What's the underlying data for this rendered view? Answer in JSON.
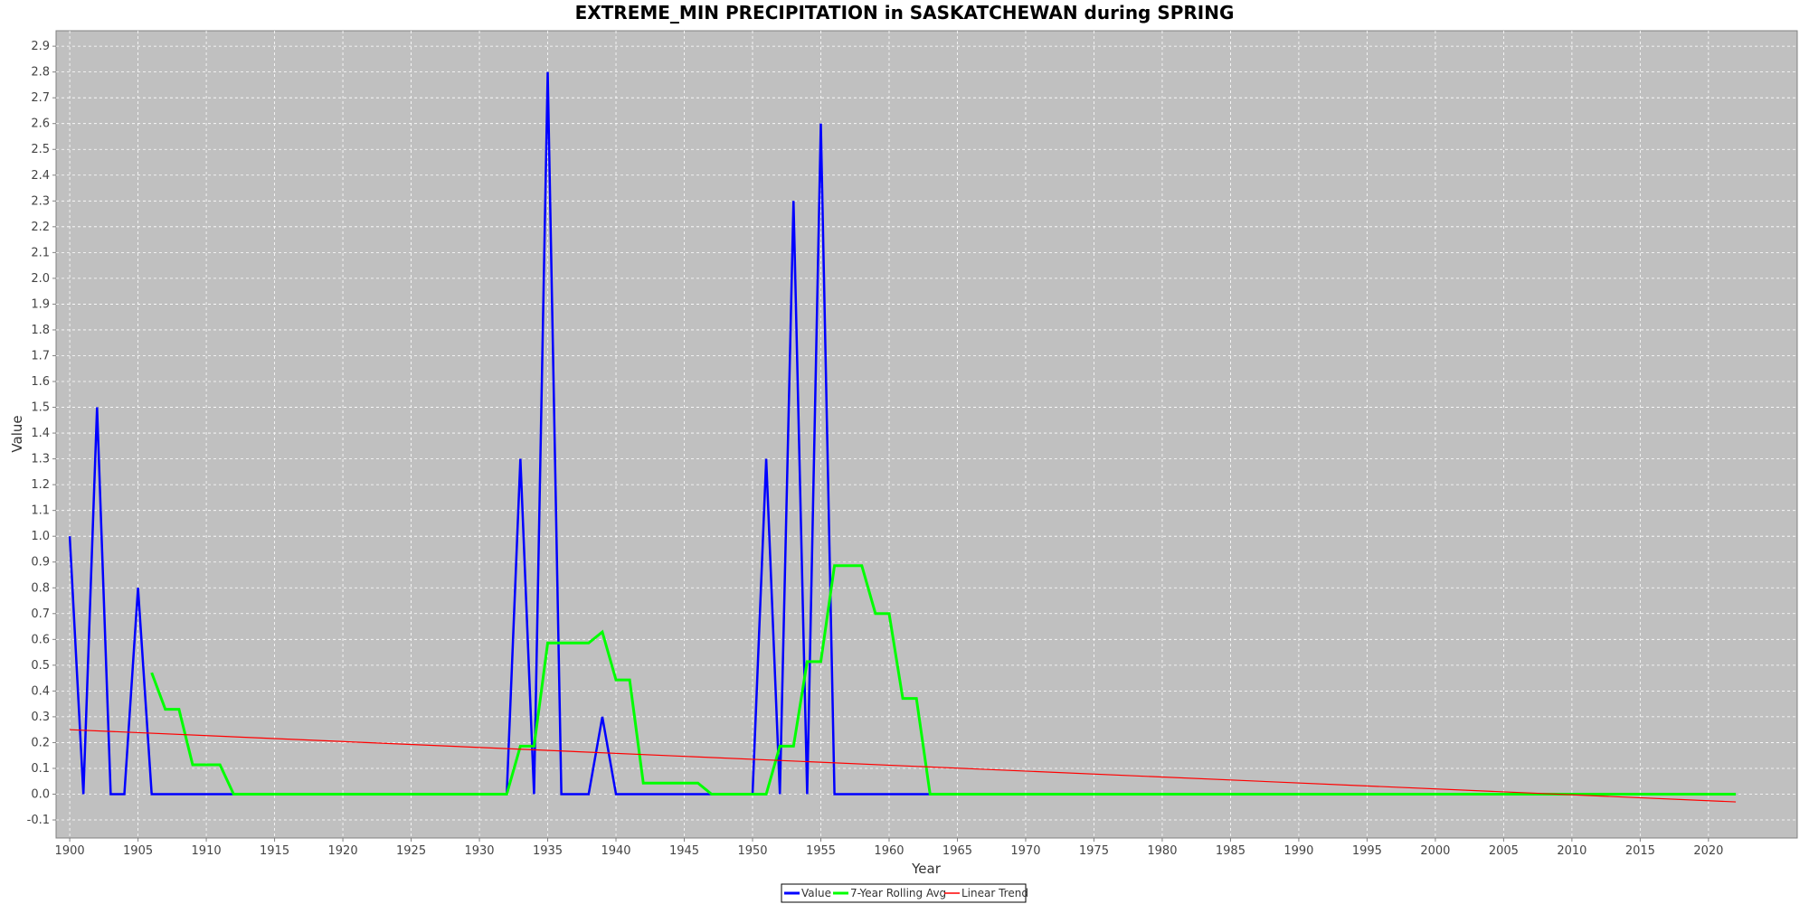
{
  "chart_data": {
    "type": "line",
    "title": "EXTREME_MIN PRECIPITATION in SASKATCHEWAN during SPRING",
    "xlabel": "Year",
    "ylabel": "Value",
    "xlim": [
      1899,
      2026.5
    ],
    "ylim": [
      -0.17,
      2.96
    ],
    "xticks": [
      1900,
      1905,
      1910,
      1915,
      1920,
      1925,
      1930,
      1935,
      1940,
      1945,
      1950,
      1955,
      1960,
      1965,
      1970,
      1975,
      1980,
      1985,
      1990,
      1995,
      2000,
      2005,
      2010,
      2015,
      2020
    ],
    "yticks": [
      -0.1,
      0.0,
      0.1,
      0.2,
      0.3,
      0.4,
      0.5,
      0.6,
      0.7,
      0.8,
      0.9,
      1.0,
      1.1,
      1.2,
      1.3,
      1.4,
      1.5,
      1.6,
      1.7,
      1.8,
      1.9,
      2.0,
      2.1,
      2.2,
      2.3,
      2.4,
      2.5,
      2.6,
      2.7,
      2.8,
      2.9
    ],
    "grid": true,
    "legend_position": "bottom-center",
    "background": "#c0c0c0",
    "series": [
      {
        "name": "Value",
        "color": "#0000ff",
        "x_start": 1900,
        "values": [
          1.0,
          0.0,
          1.5,
          0.0,
          0.0,
          0.8,
          0.0,
          0.0,
          0.0,
          0.0,
          0.0,
          0.0,
          0.0,
          0.0,
          0.0,
          0.0,
          0.0,
          0.0,
          0.0,
          0.0,
          0.0,
          0.0,
          0.0,
          0.0,
          0.0,
          0.0,
          0.0,
          0.0,
          0.0,
          0.0,
          0.0,
          0.0,
          0.0,
          1.3,
          0.0,
          2.8,
          0.0,
          0.0,
          0.0,
          0.3,
          0.0,
          0.0,
          0.0,
          0.0,
          0.0,
          0.0,
          0.0,
          0.0,
          0.0,
          0.0,
          0.0,
          1.3,
          0.0,
          2.3,
          0.0,
          2.6,
          0.0,
          0.0,
          0.0,
          0.0,
          0.0,
          0.0,
          0.0,
          0.0,
          0.0,
          0.0,
          0.0,
          0.0,
          0.0,
          0.0,
          0.0,
          0.0,
          0.0,
          0.0,
          0.0,
          0.0,
          0.0,
          0.0,
          0.0,
          0.0,
          0.0,
          0.0,
          0.0,
          0.0,
          0.0,
          0.0,
          0.0,
          0.0,
          0.0,
          0.0,
          0.0,
          0.0,
          0.0,
          0.0,
          0.0,
          0.0,
          0.0,
          0.0,
          0.0,
          0.0,
          0.0,
          0.0,
          0.0,
          0.0,
          0.0,
          0.0,
          0.0,
          0.0,
          0.0,
          0.0,
          0.0,
          0.0,
          0.0,
          0.0,
          0.0,
          0.0,
          0.0,
          0.0,
          0.0,
          0.0,
          0.0,
          0.0,
          0.0
        ]
      },
      {
        "name": "7-Year Rolling Avg",
        "color": "#00ff00",
        "x_start": 1906,
        "values": [
          0.471,
          0.329,
          0.329,
          0.114,
          0.114,
          0.114,
          0.0,
          0.0,
          0.0,
          0.0,
          0.0,
          0.0,
          0.0,
          0.0,
          0.0,
          0.0,
          0.0,
          0.0,
          0.0,
          0.0,
          0.0,
          0.0,
          0.0,
          0.0,
          0.0,
          0.0,
          0.0,
          0.186,
          0.186,
          0.586,
          0.586,
          0.586,
          0.586,
          0.629,
          0.443,
          0.443,
          0.043,
          0.043,
          0.043,
          0.043,
          0.043,
          0.0,
          0.0,
          0.0,
          0.0,
          0.0,
          0.186,
          0.186,
          0.514,
          0.514,
          0.886,
          0.886,
          0.886,
          0.7,
          0.7,
          0.371,
          0.371,
          0.0,
          0.0,
          0.0,
          0.0,
          0.0,
          0.0,
          0.0,
          0.0,
          0.0,
          0.0,
          0.0,
          0.0,
          0.0,
          0.0,
          0.0,
          0.0,
          0.0,
          0.0,
          0.0,
          0.0,
          0.0,
          0.0,
          0.0,
          0.0,
          0.0,
          0.0,
          0.0,
          0.0,
          0.0,
          0.0,
          0.0,
          0.0,
          0.0,
          0.0,
          0.0,
          0.0,
          0.0,
          0.0,
          0.0,
          0.0,
          0.0,
          0.0,
          0.0,
          0.0,
          0.0,
          0.0,
          0.0,
          0.0,
          0.0,
          0.0,
          0.0,
          0.0,
          0.0,
          0.0,
          0.0,
          0.0,
          0.0,
          0.0,
          0.0,
          0.0
        ]
      },
      {
        "name": "Linear Trend",
        "color": "#ff0000",
        "x": [
          1900,
          2022
        ],
        "y": [
          0.25,
          -0.03
        ]
      }
    ]
  }
}
